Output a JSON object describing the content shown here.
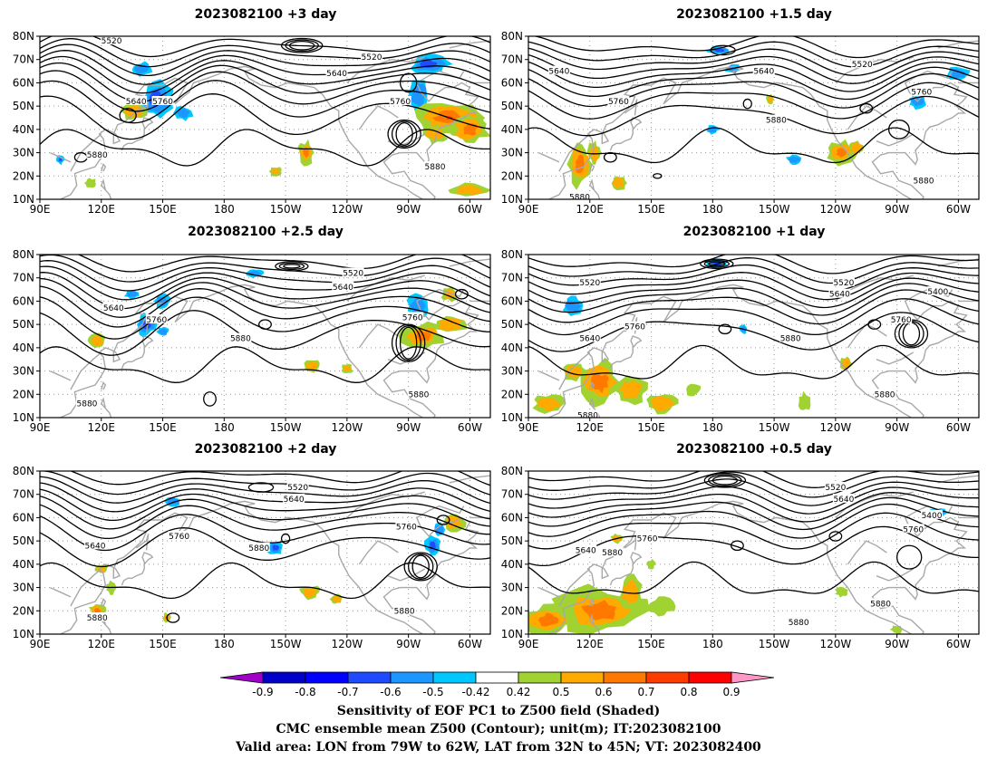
{
  "panels": [
    {
      "title": "2023082100  +3 day",
      "contours": [
        {
          "text": "5520",
          "lon": 125,
          "lat": 78
        },
        {
          "text": "5520",
          "lon": 252,
          "lat": 71
        },
        {
          "text": "5640",
          "lon": 235,
          "lat": 64
        },
        {
          "text": "5640",
          "lon": 137,
          "lat": 52
        },
        {
          "text": "5760",
          "lon": 150,
          "lat": 52
        },
        {
          "text": "5760",
          "lon": 266,
          "lat": 52
        },
        {
          "text": "5880",
          "lon": 118,
          "lat": 29
        },
        {
          "text": "5880",
          "lon": 283,
          "lat": 24
        }
      ]
    },
    {
      "title": "2023082100  +1.5 day",
      "contours": [
        {
          "text": "5640",
          "lon": 105,
          "lat": 65
        },
        {
          "text": "5640",
          "lon": 205,
          "lat": 65
        },
        {
          "text": "5520",
          "lon": 253,
          "lat": 68
        },
        {
          "text": "5760",
          "lon": 134,
          "lat": 52
        },
        {
          "text": "5760",
          "lon": 282,
          "lat": 56
        },
        {
          "text": "5880",
          "lon": 211,
          "lat": 44
        },
        {
          "text": "5880",
          "lon": 115,
          "lat": 11
        },
        {
          "text": "5880",
          "lon": 283,
          "lat": 18
        }
      ]
    },
    {
      "title": "2023082100  +2.5 day",
      "contours": [
        {
          "text": "5520",
          "lon": 243,
          "lat": 72
        },
        {
          "text": "5640",
          "lon": 238,
          "lat": 66
        },
        {
          "text": "5640",
          "lon": 126,
          "lat": 57
        },
        {
          "text": "5760",
          "lon": 147,
          "lat": 52
        },
        {
          "text": "5760",
          "lon": 272,
          "lat": 53
        },
        {
          "text": "5880",
          "lon": 188,
          "lat": 44
        },
        {
          "text": "5880",
          "lon": 113,
          "lat": 16
        },
        {
          "text": "5880",
          "lon": 275,
          "lat": 20
        }
      ]
    },
    {
      "title": "2023082100  +1 day",
      "contours": [
        {
          "text": "5520",
          "lon": 120,
          "lat": 68
        },
        {
          "text": "5520",
          "lon": 244,
          "lat": 68
        },
        {
          "text": "5640",
          "lon": 242,
          "lat": 63
        },
        {
          "text": "5400",
          "lon": 290,
          "lat": 64
        },
        {
          "text": "5760",
          "lon": 272,
          "lat": 52
        },
        {
          "text": "5760",
          "lon": 142,
          "lat": 49
        },
        {
          "text": "5640",
          "lon": 120,
          "lat": 44
        },
        {
          "text": "5880",
          "lon": 218,
          "lat": 44
        },
        {
          "text": "5880",
          "lon": 119,
          "lat": 11
        },
        {
          "text": "5880",
          "lon": 264,
          "lat": 20
        }
      ]
    },
    {
      "title": "2023082100  +2 day",
      "contours": [
        {
          "text": "5520",
          "lon": 216,
          "lat": 73
        },
        {
          "text": "5640",
          "lon": 214,
          "lat": 68
        },
        {
          "text": "5760",
          "lon": 269,
          "lat": 56
        },
        {
          "text": "5760",
          "lon": 158,
          "lat": 52
        },
        {
          "text": "5640",
          "lon": 117,
          "lat": 48
        },
        {
          "text": "5880",
          "lon": 197,
          "lat": 47
        },
        {
          "text": "5880",
          "lon": 118,
          "lat": 17
        },
        {
          "text": "5880",
          "lon": 268,
          "lat": 20
        }
      ]
    },
    {
      "title": "2023082100  +0.5 day",
      "contours": [
        {
          "text": "5520",
          "lon": 240,
          "lat": 73
        },
        {
          "text": "5640",
          "lon": 244,
          "lat": 68
        },
        {
          "text": "5400",
          "lon": 287,
          "lat": 61
        },
        {
          "text": "5760",
          "lon": 278,
          "lat": 55
        },
        {
          "text": "5760",
          "lon": 148,
          "lat": 51
        },
        {
          "text": "5640",
          "lon": 118,
          "lat": 46
        },
        {
          "text": "5880",
          "lon": 131,
          "lat": 45
        },
        {
          "text": "5880",
          "lon": 262,
          "lat": 23
        },
        {
          "text": "5880",
          "lon": 222,
          "lat": 15
        }
      ]
    }
  ],
  "axes": {
    "lat_labels": [
      "10N",
      "20N",
      "30N",
      "40N",
      "50N",
      "60N",
      "70N",
      "80N"
    ],
    "lon_labels": [
      "90E",
      "120E",
      "150E",
      "180",
      "150W",
      "120W",
      "90W",
      "60W"
    ]
  },
  "colorbar": {
    "labels": [
      "-0.9",
      "-0.8",
      "-0.7",
      "-0.6",
      "-0.5",
      "-0.42",
      "0.42",
      "0.5",
      "0.6",
      "0.7",
      "0.8",
      "0.9"
    ],
    "colors": [
      "#a000c8",
      "#0000c8",
      "#0000ff",
      "#1e4bff",
      "#1e96ff",
      "#00c8ff",
      "#ffffff",
      "#a0d232",
      "#ffaa00",
      "#ff7800",
      "#ff3c00",
      "#ff0000",
      "#ff96c8"
    ]
  },
  "caption": {
    "line1": "Sensitivity of EOF PC1 to Z500 field (Shaded)",
    "line2": "CMC ensemble mean Z500 (Contour); unit(m); IT:2023082100",
    "line3": "Valid area: LON from 79W to 62W, LAT from 32N to 45N; VT: 2023082400"
  }
}
